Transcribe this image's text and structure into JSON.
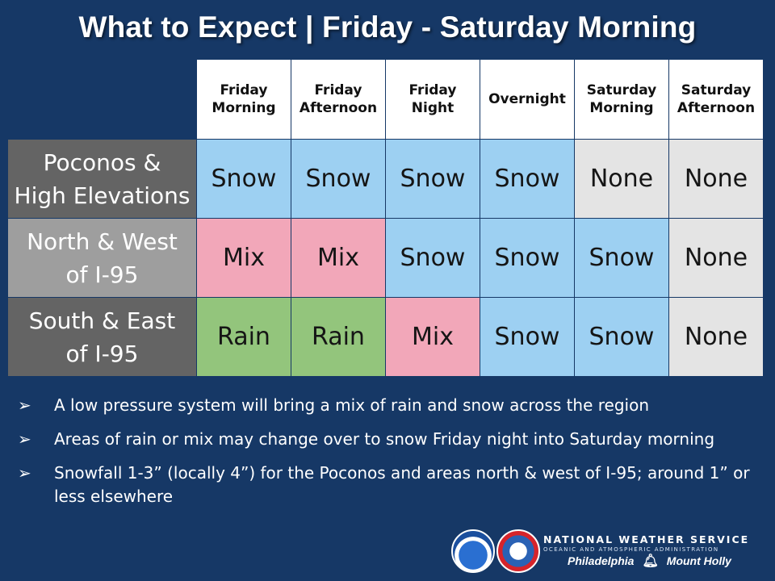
{
  "title": "What to Expect | Friday - Saturday Morning",
  "columns": [
    "Friday\nMorning",
    "Friday\nAfternoon",
    "Friday\nNight",
    "Overnight",
    "Saturday\nMorning",
    "Saturday\nAfternoon"
  ],
  "rows": [
    {
      "region": "Poconos &\nHigh Elevations",
      "values": [
        "Snow",
        "Snow",
        "Snow",
        "Snow",
        "None",
        "None"
      ]
    },
    {
      "region": "North & West\nof I-95",
      "values": [
        "Mix",
        "Mix",
        "Snow",
        "Snow",
        "Snow",
        "None"
      ]
    },
    {
      "region": "South & East\nof I-95",
      "values": [
        "Rain",
        "Rain",
        "Mix",
        "Snow",
        "Snow",
        "None"
      ]
    }
  ],
  "bullets": [
    "A low pressure system will bring a mix of rain and snow across the region",
    "Areas of rain or mix may change over to snow Friday night into Saturday morning",
    "Snowfall 1-3” (locally 4”) for the Poconos and areas north & west of I-95; around 1” or less elsewhere"
  ],
  "bullet_marker": "➢",
  "footer": {
    "agency": "NATIONAL WEATHER SERVICE",
    "parent": "OCEANIC AND ATMOSPHERIC ADMINISTRATION",
    "office_left": "Philadelphia",
    "office_right": "Mount Holly",
    "office_icon": "liberty-bell-icon"
  },
  "colors": {
    "background": "#163866",
    "Snow": "#9dd0f2",
    "None": "#e4e4e4",
    "Mix": "#f2a7b9",
    "Rain": "#93c57c"
  }
}
